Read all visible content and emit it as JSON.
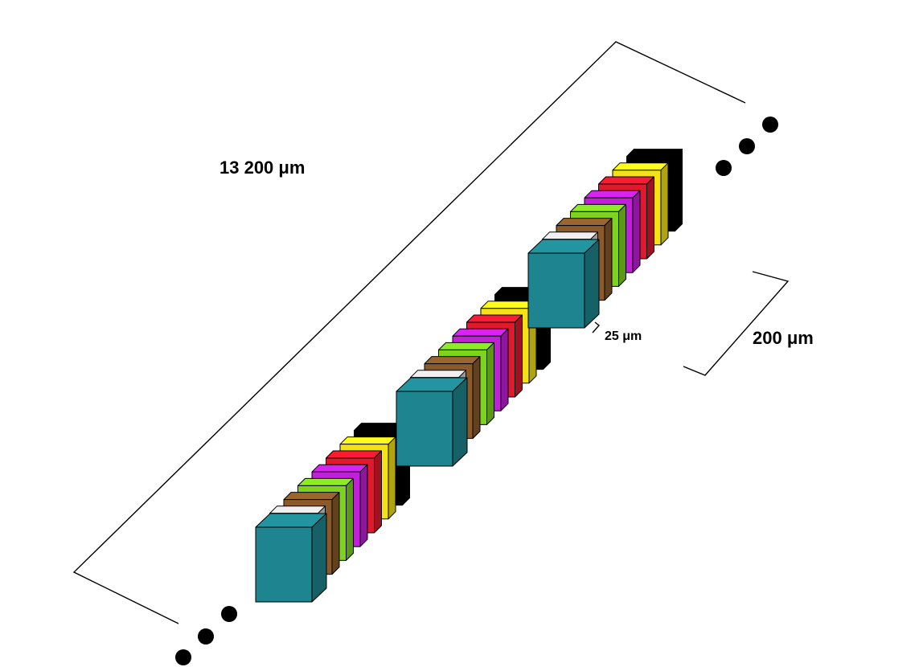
{
  "labels": {
    "total_length": "13 200 μm",
    "block_spacing": "200 μm",
    "gap": "25 μm"
  },
  "palette": {
    "face_colors": [
      "#d6d6d6",
      "#8a5a2b",
      "#7ed321",
      "#c21fd9",
      "#e0192d",
      "#f5e216",
      "#000000"
    ],
    "lead_block_color": "#1e8590",
    "continuation_dot_color": "#000000"
  },
  "diagram": {
    "block_count": 3,
    "layers_per_block": 8,
    "continues_both_ends": true
  }
}
